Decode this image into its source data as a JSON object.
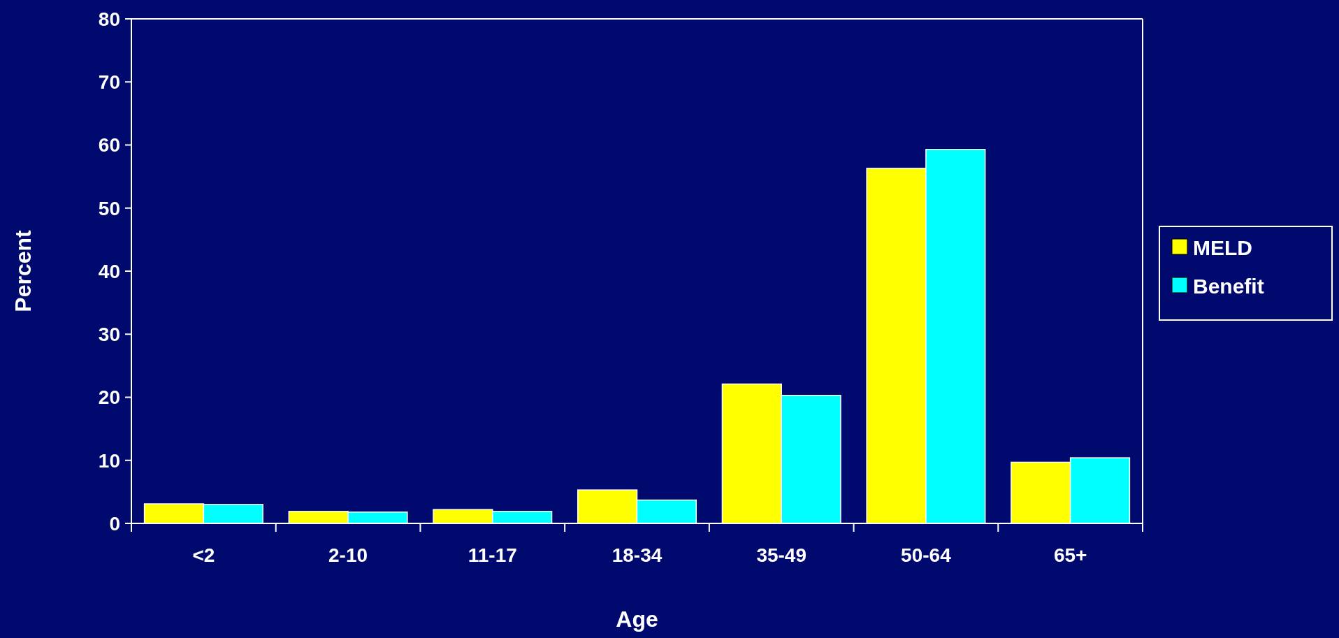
{
  "chart_data": {
    "type": "bar",
    "xlabel": "Age",
    "ylabel": "Percent",
    "categories": [
      "<2",
      "2-10",
      "11-17",
      "18-34",
      "35-49",
      "50-64",
      "65+"
    ],
    "series": [
      {
        "name": "MELD",
        "color": "#ffff00",
        "values": [
          3.1,
          1.9,
          2.2,
          5.3,
          22.1,
          56.3,
          9.7
        ]
      },
      {
        "name": "Benefit",
        "color": "#00ffff",
        "values": [
          3.0,
          1.8,
          1.9,
          3.7,
          20.3,
          59.3,
          10.4
        ]
      }
    ],
    "ylim": [
      0,
      80
    ],
    "yticks": [
      0,
      10,
      20,
      30,
      40,
      50,
      60,
      70,
      80
    ],
    "grid": false,
    "legend": "right"
  }
}
